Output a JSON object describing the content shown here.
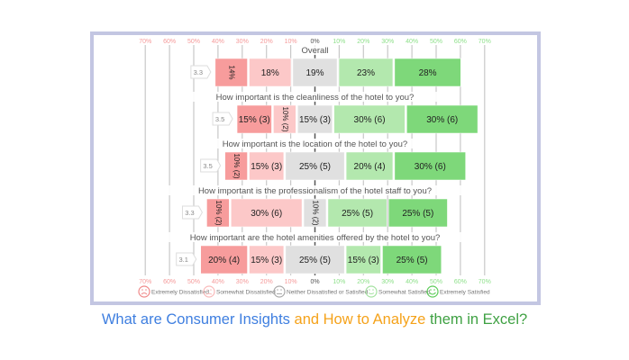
{
  "chart_data": {
    "type": "bar",
    "orientation": "horizontal-diverging",
    "ticks": [
      "70%",
      "60%",
      "50%",
      "40%",
      "30%",
      "20%",
      "10%",
      "0%",
      "10%",
      "20%",
      "30%",
      "40%",
      "50%",
      "60%",
      "70%"
    ],
    "xlim": [
      -70,
      70
    ],
    "grid": true,
    "legend_position": "bottom",
    "series": [
      {
        "name": "Extremely Dissatisfied",
        "color": "#f79c9c",
        "icon": "sad-face-icon"
      },
      {
        "name": "Somewhat Dissatisfied",
        "color": "#fcc8c8",
        "icon": "slightly-sad-face-icon"
      },
      {
        "name": "Neither Dissatisfied or Satisfied",
        "color": "#e0e0e0",
        "icon": "neutral-face-icon"
      },
      {
        "name": "Somewhat Satisfied",
        "color": "#b3e8ae",
        "icon": "slight-smile-face-icon"
      },
      {
        "name": "Extremely Satisfied",
        "color": "#7ed87a",
        "icon": "smile-face-icon"
      }
    ],
    "rows": [
      {
        "question": "Overall",
        "score": "3.3",
        "values": [
          14,
          18,
          19,
          23,
          28
        ],
        "labels": [
          "14%",
          "18%",
          "19%",
          "23%",
          "28%"
        ]
      },
      {
        "question": "How important is the cleanliness of the hotel to you?",
        "score": "3.5",
        "values": [
          15,
          10,
          15,
          30,
          30
        ],
        "labels": [
          "15% (3)",
          "10% (2)",
          "15% (3)",
          "30% (6)",
          "30% (6)"
        ]
      },
      {
        "question": "How important is the location of the hotel to you?",
        "score": "3.5",
        "values": [
          10,
          15,
          25,
          20,
          30
        ],
        "labels": [
          "10% (2)",
          "15% (3)",
          "25% (5)",
          "20% (4)",
          "30% (6)"
        ]
      },
      {
        "question": "How important is the professionalism of the hotel staff to you?",
        "score": "3.3",
        "values": [
          10,
          30,
          10,
          25,
          25
        ],
        "labels": [
          "10% (2)",
          "30% (6)",
          "10% (2)",
          "25% (5)",
          "25% (5)"
        ]
      },
      {
        "question": "How important are the hotel amenities offered by the hotel to you?",
        "score": "3.1",
        "values": [
          20,
          15,
          25,
          15,
          25
        ],
        "labels": [
          "20% (4)",
          "15% (3)",
          "25% (5)",
          "15% (3)",
          "25% (5)"
        ]
      }
    ]
  },
  "title": {
    "part1": "What are Consumer Insights",
    "part2": "and How to Analyze",
    "part3": "them in Excel?"
  }
}
